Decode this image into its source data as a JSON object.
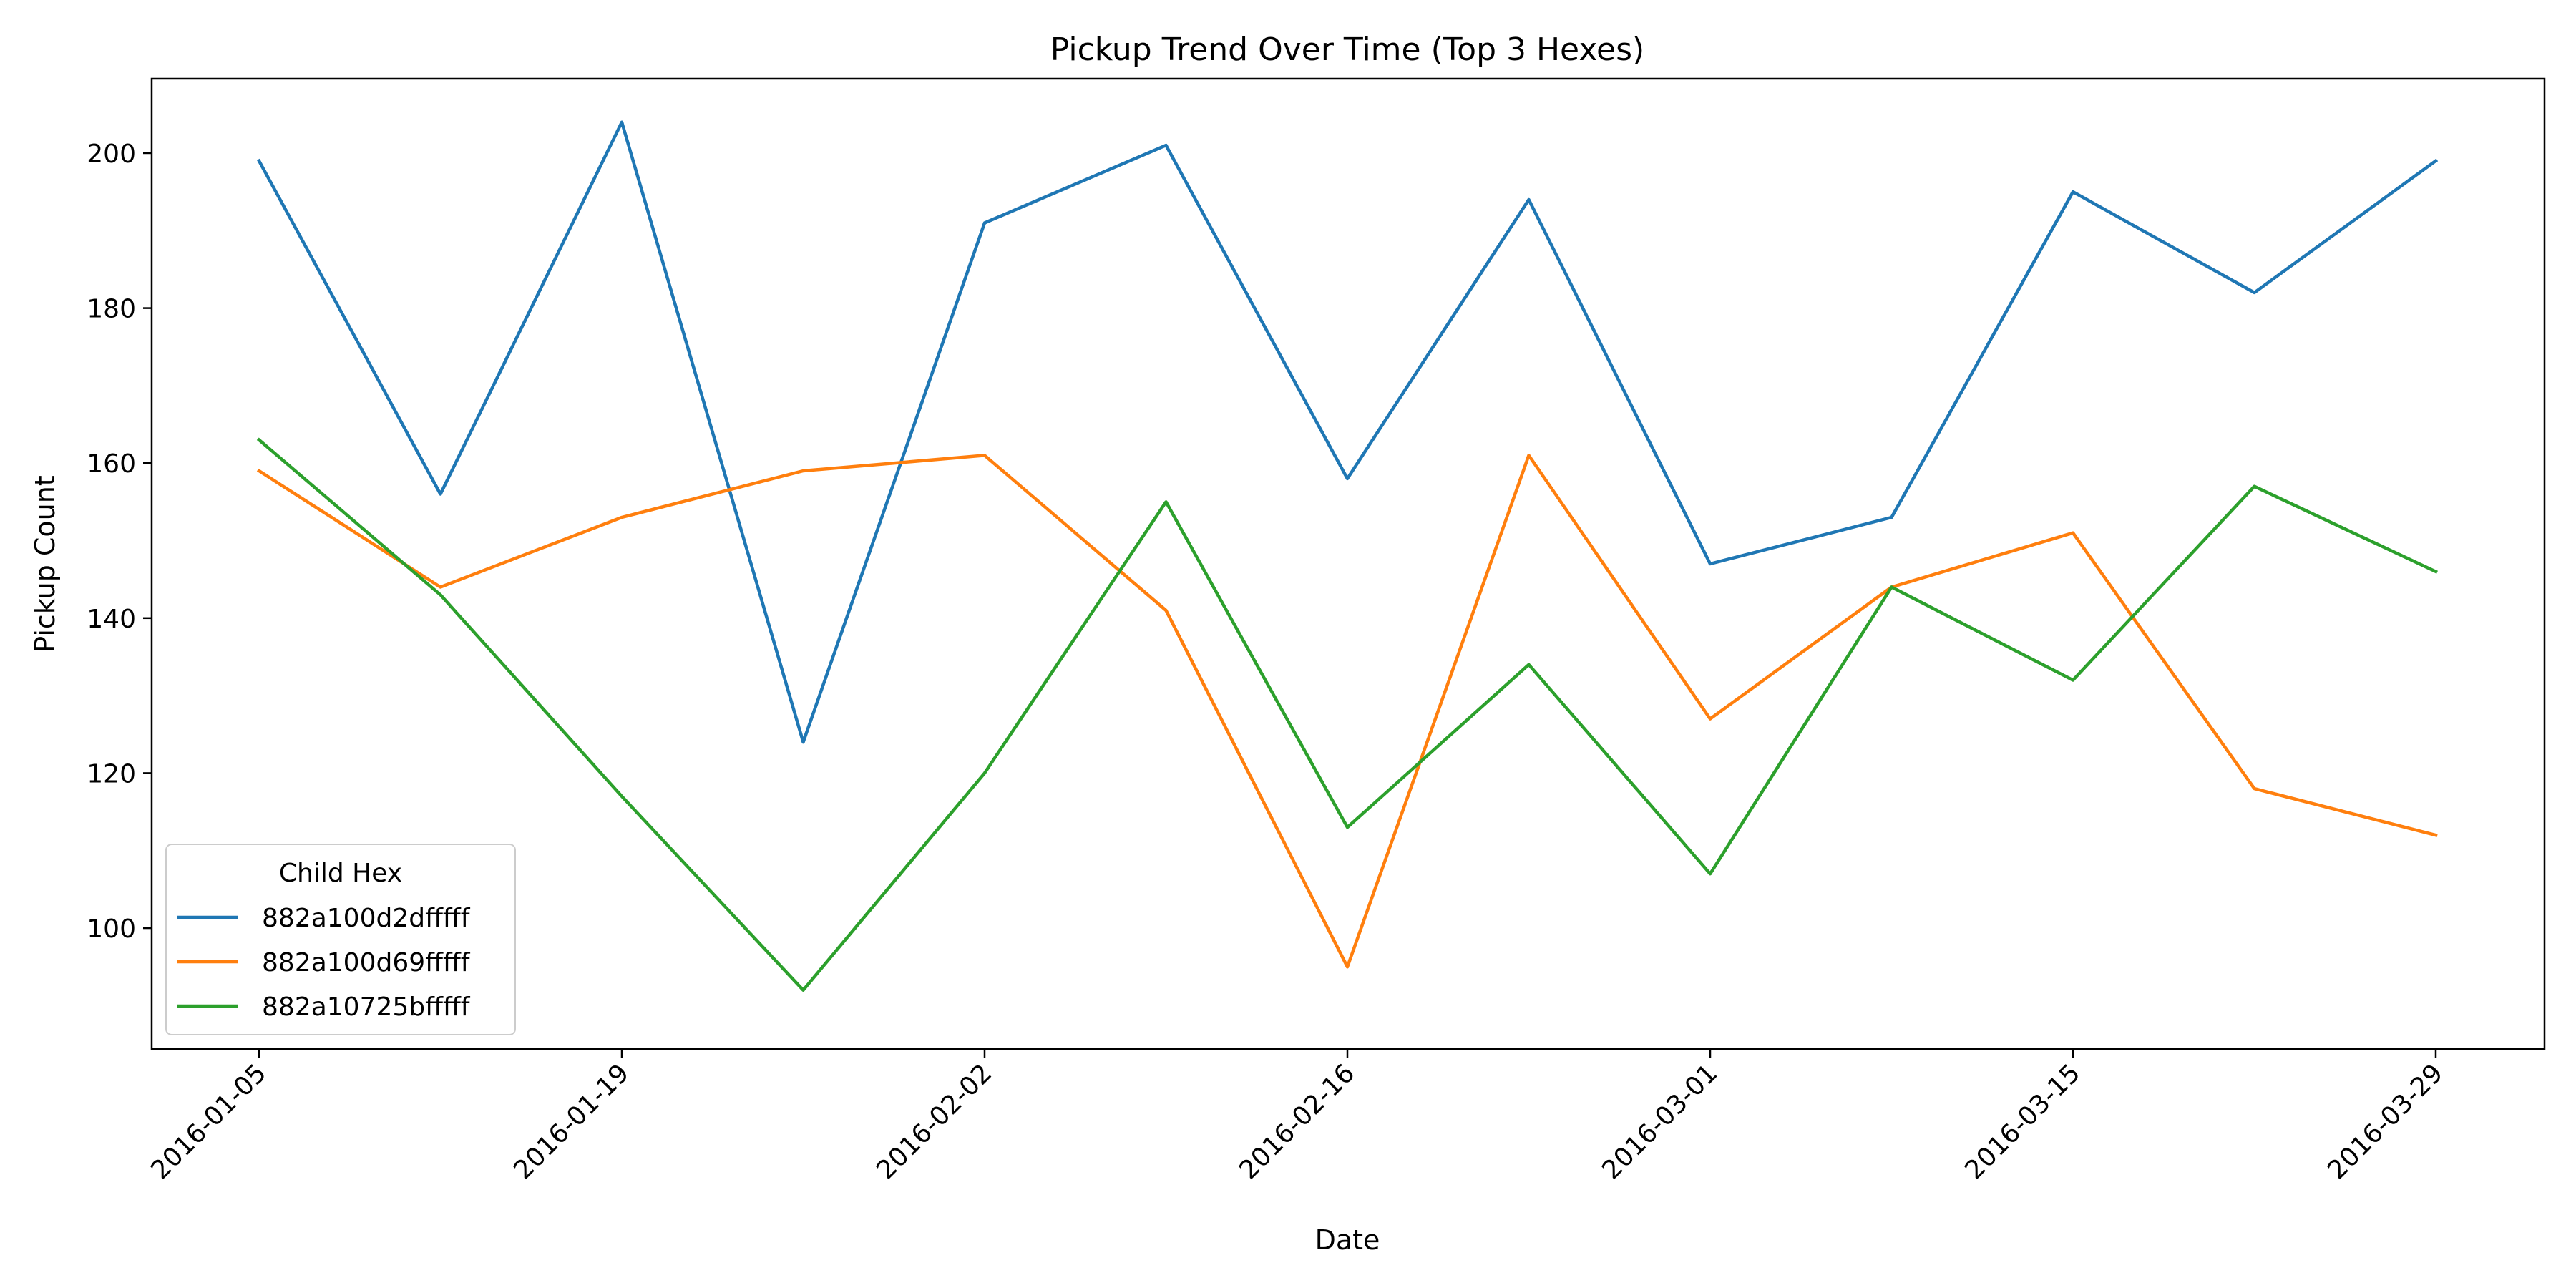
{
  "chart_data": {
    "type": "line",
    "title": "Pickup Trend Over Time (Top 3 Hexes)",
    "xlabel": "Date",
    "ylabel": "Pickup Count",
    "x": [
      "2016-01-05",
      "2016-01-12",
      "2016-01-19",
      "2016-01-26",
      "2016-02-02",
      "2016-02-09",
      "2016-02-16",
      "2016-02-23",
      "2016-03-01",
      "2016-03-08",
      "2016-03-15",
      "2016-03-22",
      "2016-03-29"
    ],
    "xticks": [
      "2016-01-05",
      "2016-01-19",
      "2016-02-02",
      "2016-02-16",
      "2016-03-01",
      "2016-03-15",
      "2016-03-29"
    ],
    "yticks": [
      100,
      120,
      140,
      160,
      180,
      200
    ],
    "ylim": [
      84.4,
      209.6
    ],
    "grid": false,
    "legend": {
      "title": "Child Hex",
      "position": "lower-left"
    },
    "series": [
      {
        "name": "882a100d2dfffff",
        "color": "#1f77b4",
        "values": [
          199,
          156,
          204,
          124,
          191,
          201,
          158,
          194,
          147,
          153,
          195,
          182,
          199
        ]
      },
      {
        "name": "882a100d69fffff",
        "color": "#ff7f0e",
        "values": [
          159,
          144,
          153,
          159,
          161,
          141,
          95,
          161,
          127,
          144,
          151,
          118,
          112
        ]
      },
      {
        "name": "882a10725bfffff",
        "color": "#2ca02c",
        "values": [
          163,
          143,
          117,
          92,
          120,
          155,
          113,
          134,
          107,
          144,
          132,
          157,
          146
        ]
      }
    ]
  }
}
